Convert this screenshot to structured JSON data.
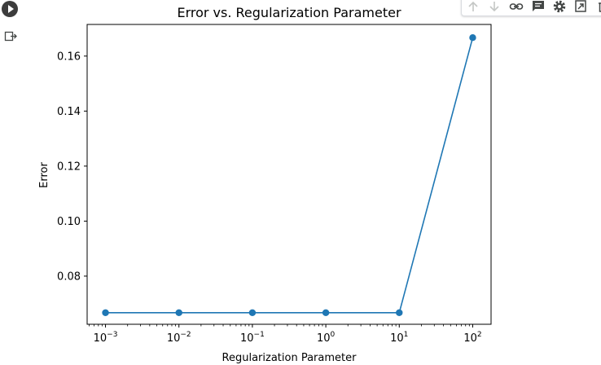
{
  "toolbar": {
    "icons": [
      "arrow-up-icon",
      "arrow-down-icon",
      "link-icon",
      "comment-icon",
      "gear-icon",
      "mirror-cell-icon",
      "delete-icon"
    ]
  },
  "colors": {
    "series": "#1f77b4",
    "toolbar_icon": "#444746",
    "toolbar_icon_disabled": "#c4c7c5"
  },
  "chart_data": {
    "type": "line",
    "title": "Error vs. Regularization Parameter",
    "xlabel": "Regularization Parameter",
    "ylabel": "Error",
    "xscale": "log",
    "x": [
      0.001,
      0.01,
      0.1,
      1,
      10,
      100
    ],
    "x_tick_labels": [
      {
        "base": "10",
        "exp": "−3"
      },
      {
        "base": "10",
        "exp": "−2"
      },
      {
        "base": "10",
        "exp": "−1"
      },
      {
        "base": "10",
        "exp": "0"
      },
      {
        "base": "10",
        "exp": "1"
      },
      {
        "base": "10",
        "exp": "2"
      }
    ],
    "y": [
      0.0667,
      0.0667,
      0.0667,
      0.0667,
      0.0667,
      0.1667
    ],
    "ylim": [
      0.0625,
      0.1715
    ],
    "y_ticks": [
      0.08,
      0.1,
      0.12,
      0.14,
      0.16
    ],
    "y_tick_labels": [
      "0.08",
      "0.10",
      "0.12",
      "0.14",
      "0.16"
    ],
    "marker": "circle",
    "grid": false
  }
}
